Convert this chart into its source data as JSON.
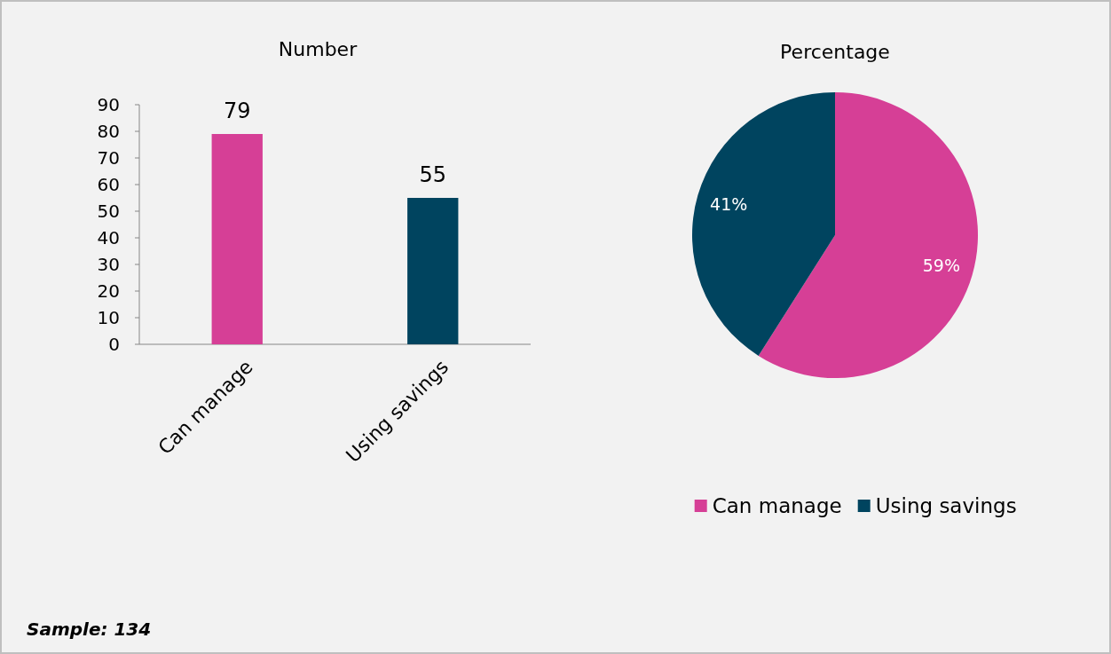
{
  "chart_data": [
    {
      "type": "bar",
      "title": "Number",
      "categories": [
        "Can manage",
        "Using savings"
      ],
      "values": [
        79,
        55
      ],
      "colors": [
        "#d63f96",
        "#00445f"
      ],
      "ylim": [
        0,
        90
      ],
      "yticks": [
        0,
        10,
        20,
        30,
        40,
        50,
        60,
        70,
        80,
        90
      ],
      "grid": false,
      "data_labels": true,
      "annotations": [
        "Sample: 134"
      ]
    },
    {
      "type": "pie",
      "title": "Percentage",
      "categories": [
        "Can manage",
        "Using savings"
      ],
      "values": [
        59,
        41
      ],
      "colors": [
        "#d63f96",
        "#00445f"
      ],
      "value_labels": [
        "59%",
        "41%"
      ],
      "legend": "bottom"
    }
  ]
}
